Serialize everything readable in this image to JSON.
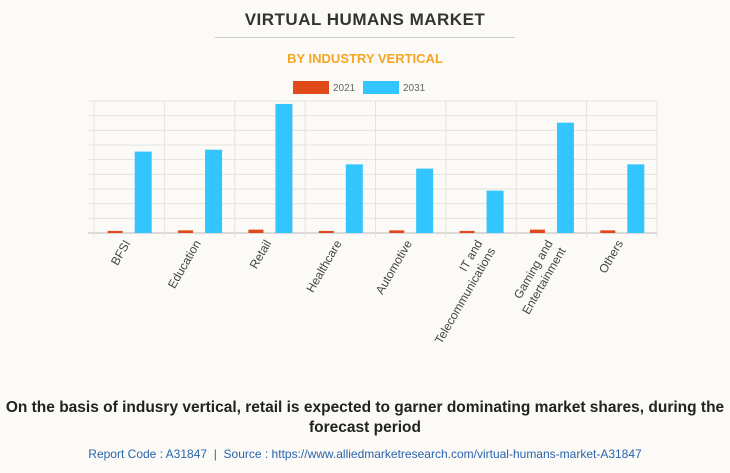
{
  "header": {
    "title": "VIRTUAL HUMANS MARKET",
    "subtitle": "BY INDUSTRY VERTICAL"
  },
  "chart_data": {
    "type": "bar",
    "categories": [
      [
        "BFSI"
      ],
      [
        "Education"
      ],
      [
        "Retail"
      ],
      [
        "Healthcare"
      ],
      [
        "Automotive"
      ],
      [
        "IT and",
        "Telecommunications"
      ],
      [
        "Gaming and",
        "Entertainment"
      ],
      [
        "Others"
      ]
    ],
    "series": [
      {
        "name": "2021",
        "color": "#e2491a",
        "values": [
          0.14,
          0.18,
          0.23,
          0.14,
          0.18,
          0.14,
          0.23,
          0.18
        ]
      },
      {
        "name": "2031",
        "color": "#33c5fe",
        "values": [
          5.55,
          5.68,
          8.8,
          4.68,
          4.39,
          2.89,
          7.52,
          4.68
        ]
      }
    ],
    "ylim": [
      0,
      9
    ],
    "grid": true,
    "legend": "top-center",
    "y_tick_labels": false
  },
  "caption": "On the basis of indusry vertical, retail is expected to garner dominating market shares, during the forecast period",
  "footer": {
    "report_code": "Report Code : A31847",
    "separator": "|",
    "source": "Source : https://www.alliedmarketresearch.com/virtual-humans-market-A31847"
  }
}
